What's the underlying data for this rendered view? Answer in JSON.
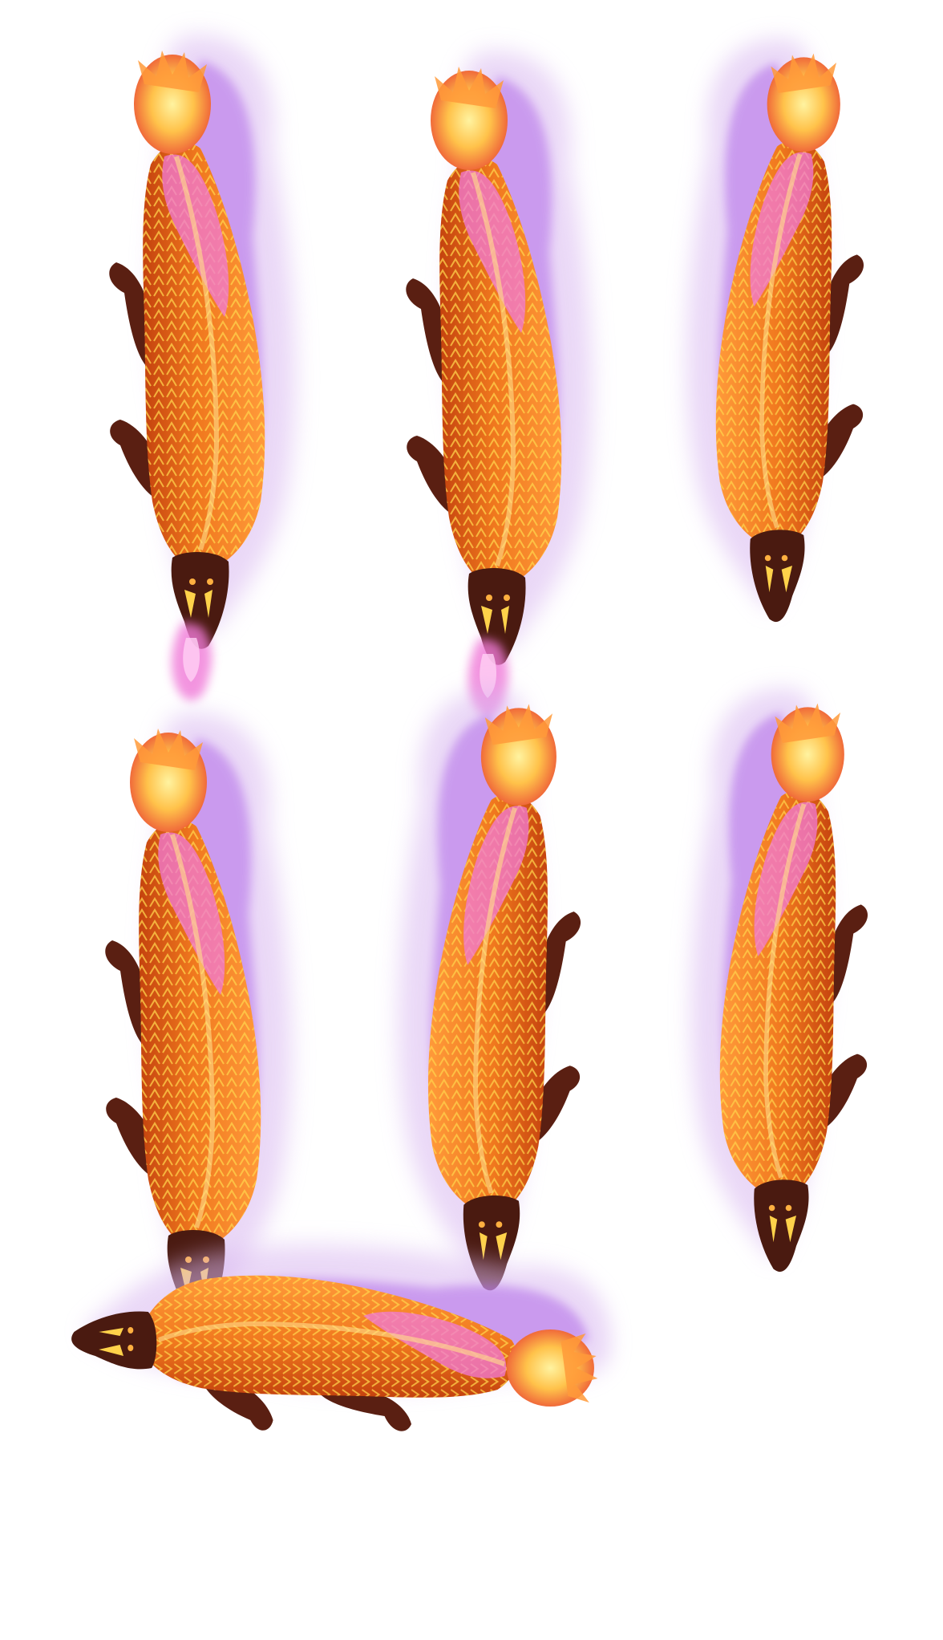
{
  "sheet": {
    "background": "#ffffff",
    "palette": {
      "smoke_outer": "#d9b8f0",
      "smoke_inner": "#b06ae8",
      "glow": "#e47ef0",
      "body_orange": "#f0781e",
      "body_deep": "#c4420e",
      "scale_yellow": "#ffd24a",
      "tail_flame": "#ffe27a",
      "legs": "#5a1f12",
      "head": "#4a1a10"
    },
    "frames": [
      {
        "name": "frame-1",
        "pose": "vertical-head-down",
        "variant": "muzzle-flame"
      },
      {
        "name": "frame-2",
        "pose": "vertical-head-down",
        "variant": "muzzle-flame"
      },
      {
        "name": "frame-3",
        "pose": "vertical-head-down",
        "variant": "tail-right"
      },
      {
        "name": "frame-4",
        "pose": "vertical-head-down",
        "variant": "muzzle-flame"
      },
      {
        "name": "frame-5",
        "pose": "vertical-head-down",
        "variant": "tail-centered"
      },
      {
        "name": "frame-6",
        "pose": "vertical-head-down",
        "variant": "tail-right"
      },
      {
        "name": "frame-7",
        "pose": "horizontal-head-right",
        "variant": "side"
      }
    ]
  }
}
